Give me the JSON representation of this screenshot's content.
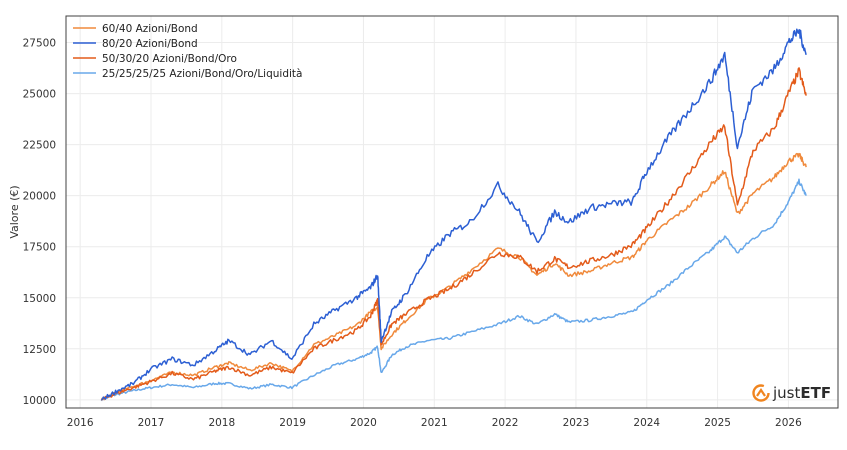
{
  "chart_data": {
    "type": "line",
    "title": "",
    "xlabel": "",
    "ylabel": "Valore (€)",
    "ylim": [
      9600,
      28800
    ],
    "xlim": [
      2015.8,
      2026.7
    ],
    "yticks": [
      10000,
      12500,
      15000,
      17500,
      20000,
      22500,
      25000,
      27500
    ],
    "xticks": [
      2016,
      2017,
      2018,
      2019,
      2020,
      2021,
      2022,
      2023,
      2024,
      2025,
      2026
    ],
    "grid": true,
    "legend_position": "top-left",
    "series": [
      {
        "name": "60/40 Azioni/Bond",
        "color": "#f08a3c",
        "x": [
          2016.3,
          2016.5,
          2016.75,
          2017.0,
          2017.3,
          2017.6,
          2017.9,
          2018.1,
          2018.4,
          2018.7,
          2018.99,
          2019.3,
          2019.6,
          2019.9,
          2020.1,
          2020.2,
          2020.25,
          2020.4,
          2020.6,
          2020.9,
          2021.2,
          2021.5,
          2021.9,
          2022.2,
          2022.45,
          2022.7,
          2022.9,
          2023.2,
          2023.5,
          2023.8,
          2024.0,
          2024.3,
          2024.6,
          2024.9,
          2025.1,
          2025.28,
          2025.5,
          2025.8,
          2026.0,
          2026.15,
          2026.25
        ],
        "y": [
          10000,
          10350,
          10650,
          10950,
          11350,
          11200,
          11600,
          11800,
          11450,
          11800,
          11400,
          12700,
          13150,
          13650,
          14300,
          14550,
          12500,
          13200,
          13900,
          14900,
          15500,
          16300,
          17400,
          17000,
          16100,
          16700,
          16100,
          16300,
          16700,
          17000,
          17800,
          18700,
          19500,
          20500,
          21200,
          19100,
          20100,
          20900,
          21700,
          22000,
          21400
        ]
      },
      {
        "name": "80/20 Azioni/Bond",
        "color": "#2c5fd3",
        "x": [
          2016.3,
          2016.5,
          2016.75,
          2017.0,
          2017.3,
          2017.6,
          2017.9,
          2018.1,
          2018.4,
          2018.7,
          2018.99,
          2019.3,
          2019.6,
          2019.9,
          2020.1,
          2020.2,
          2020.25,
          2020.4,
          2020.6,
          2020.9,
          2021.2,
          2021.5,
          2021.9,
          2022.2,
          2022.45,
          2022.7,
          2022.9,
          2023.2,
          2023.5,
          2023.8,
          2024.0,
          2024.3,
          2024.6,
          2024.9,
          2025.1,
          2025.28,
          2025.5,
          2025.8,
          2026.0,
          2026.15,
          2026.25
        ],
        "y": [
          10000,
          10400,
          10800,
          11500,
          12000,
          11700,
          12400,
          12900,
          12200,
          12900,
          12000,
          13700,
          14400,
          15000,
          15500,
          16100,
          12900,
          14300,
          15200,
          17000,
          18100,
          18700,
          20500,
          19200,
          17700,
          19200,
          18700,
          19400,
          19600,
          19700,
          21200,
          22800,
          24200,
          25600,
          26900,
          22400,
          25200,
          26200,
          27500,
          28100,
          26900
        ]
      },
      {
        "name": "50/30/20 Azioni/Bond/Oro",
        "color": "#e35b1a",
        "x": [
          2016.3,
          2016.5,
          2016.75,
          2017.0,
          2017.3,
          2017.6,
          2017.9,
          2018.1,
          2018.4,
          2018.7,
          2018.99,
          2019.3,
          2019.6,
          2019.9,
          2020.1,
          2020.2,
          2020.25,
          2020.4,
          2020.6,
          2020.9,
          2021.2,
          2021.5,
          2021.9,
          2022.2,
          2022.45,
          2022.7,
          2022.9,
          2023.2,
          2023.5,
          2023.8,
          2024.0,
          2024.3,
          2024.6,
          2024.9,
          2025.1,
          2025.28,
          2025.5,
          2025.8,
          2026.0,
          2026.15,
          2026.25
        ],
        "y": [
          10000,
          10300,
          10600,
          10900,
          11300,
          11000,
          11400,
          11600,
          11200,
          11600,
          11300,
          12500,
          12950,
          13400,
          14100,
          14900,
          12700,
          13700,
          14200,
          14900,
          15400,
          16100,
          17200,
          17000,
          16300,
          16900,
          16500,
          16800,
          17100,
          17600,
          18400,
          19700,
          21100,
          22600,
          23400,
          19500,
          22200,
          23300,
          25000,
          26100,
          24900
        ]
      },
      {
        "name": "25/25/25/25 Azioni/Bond/Oro/Liquidità",
        "color": "#68a8ea",
        "x": [
          2016.3,
          2016.5,
          2016.75,
          2017.0,
          2017.3,
          2017.6,
          2017.9,
          2018.1,
          2018.4,
          2018.7,
          2018.99,
          2019.3,
          2019.6,
          2019.9,
          2020.1,
          2020.2,
          2020.25,
          2020.4,
          2020.6,
          2020.9,
          2021.2,
          2021.5,
          2021.9,
          2022.2,
          2022.45,
          2022.7,
          2022.9,
          2023.2,
          2023.5,
          2023.8,
          2024.0,
          2024.3,
          2024.6,
          2024.9,
          2025.1,
          2025.28,
          2025.5,
          2025.8,
          2026.0,
          2026.15,
          2026.25
        ],
        "y": [
          10000,
          10250,
          10450,
          10600,
          10750,
          10600,
          10800,
          10800,
          10550,
          10750,
          10600,
          11200,
          11700,
          12000,
          12300,
          12600,
          11300,
          12200,
          12600,
          12900,
          13000,
          13300,
          13700,
          14100,
          13700,
          14200,
          13800,
          13900,
          14100,
          14300,
          14900,
          15600,
          16500,
          17300,
          18000,
          17200,
          17900,
          18600,
          19700,
          20700,
          20000
        ]
      }
    ]
  },
  "logo": {
    "brand": "justETF",
    "part_light": "just",
    "part_bold": "ETF",
    "color": "#f0841e"
  }
}
